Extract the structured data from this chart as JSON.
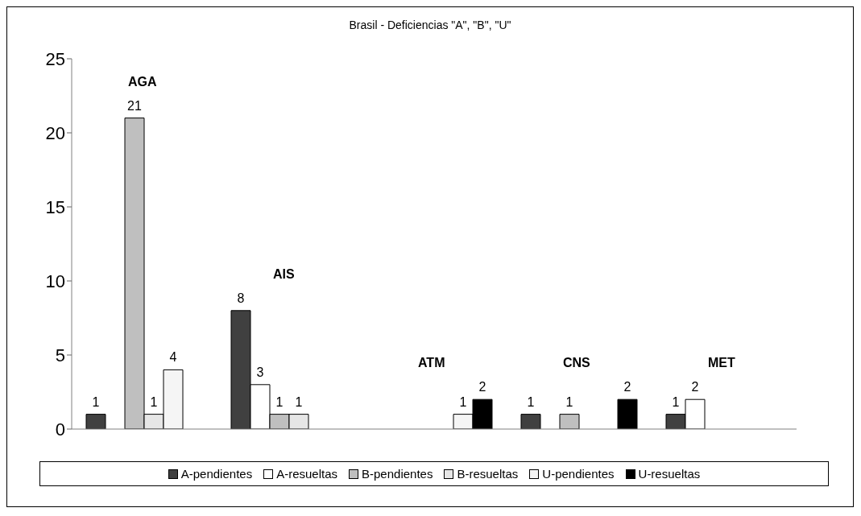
{
  "chart_data": {
    "type": "bar",
    "title": "Brasil - Deficiencias \"A\", \"B\", \"U\"",
    "categories": [
      null,
      null,
      null,
      null,
      null
    ],
    "series": [
      {
        "name": "A-pendientes",
        "color": "#404040",
        "values": [
          1,
          8,
          null,
          1,
          1
        ]
      },
      {
        "name": "A-resueltas",
        "color": "#ffffff",
        "values": [
          null,
          3,
          null,
          null,
          2
        ]
      },
      {
        "name": "B-pendientes",
        "color": "#bfbfbf",
        "values": [
          21,
          1,
          null,
          1,
          null
        ]
      },
      {
        "name": "B-resueltas",
        "color": "#e6e6e6",
        "values": [
          1,
          1,
          null,
          null,
          null
        ]
      },
      {
        "name": "U-pendientes",
        "color": "#f5f5f5",
        "values": [
          4,
          null,
          1,
          null,
          null
        ]
      },
      {
        "name": "U-resueltas",
        "color": "#000000",
        "values": [
          null,
          null,
          2,
          2,
          null
        ]
      }
    ],
    "annotations": [
      "AGA",
      "AIS",
      "ATM",
      "CNS",
      "MET"
    ],
    "ylim": [
      0,
      25
    ],
    "yticks": [
      0,
      5,
      10,
      15,
      20,
      25
    ],
    "grid": false,
    "legend": "bottom",
    "data_labels": true
  }
}
